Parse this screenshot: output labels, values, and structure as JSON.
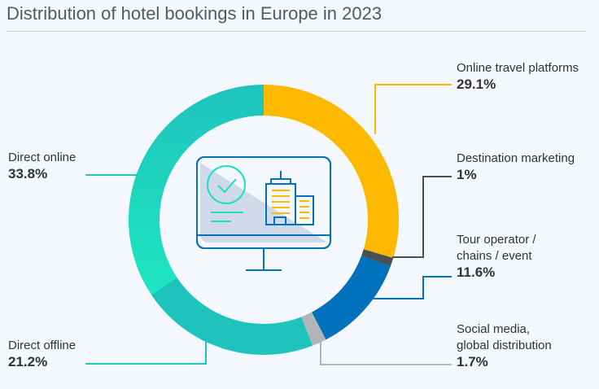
{
  "title": "Distribution of hotel bookings in Europe in 2023",
  "chart_data": {
    "type": "pie",
    "variant": "donut",
    "title": "Distribution of hotel bookings in Europe in 2023",
    "unit": "%",
    "slices": [
      {
        "label": "Online travel platforms",
        "value": 29.1,
        "display": "29.1%",
        "color": "#fdb900"
      },
      {
        "label": "Destination marketing",
        "value": 1,
        "display": "1%",
        "color": "#4a4f52"
      },
      {
        "label": "Tour operator / chains / event",
        "value": 11.6,
        "display": "11.6%",
        "color": "#0071bc"
      },
      {
        "label": "Social media, global distribution",
        "value": 1.7,
        "display": "1.7%",
        "color": "#b1b5b8"
      },
      {
        "label": "Direct offline",
        "value": 21.2,
        "display": "21.2%",
        "color": "#1ec3bd"
      },
      {
        "label": "Direct online",
        "value": 33.8,
        "display": "33.8%",
        "color": "#1ec3bd"
      }
    ]
  },
  "labels": {
    "otp": [
      "Online travel platforms"
    ],
    "dm": [
      "Destination marketing"
    ],
    "tour": [
      "Tour operator /",
      "chains / event"
    ],
    "social": [
      "Social media,",
      "global distribution"
    ],
    "doff": [
      "Direct offline"
    ],
    "don": [
      "Direct online"
    ]
  }
}
